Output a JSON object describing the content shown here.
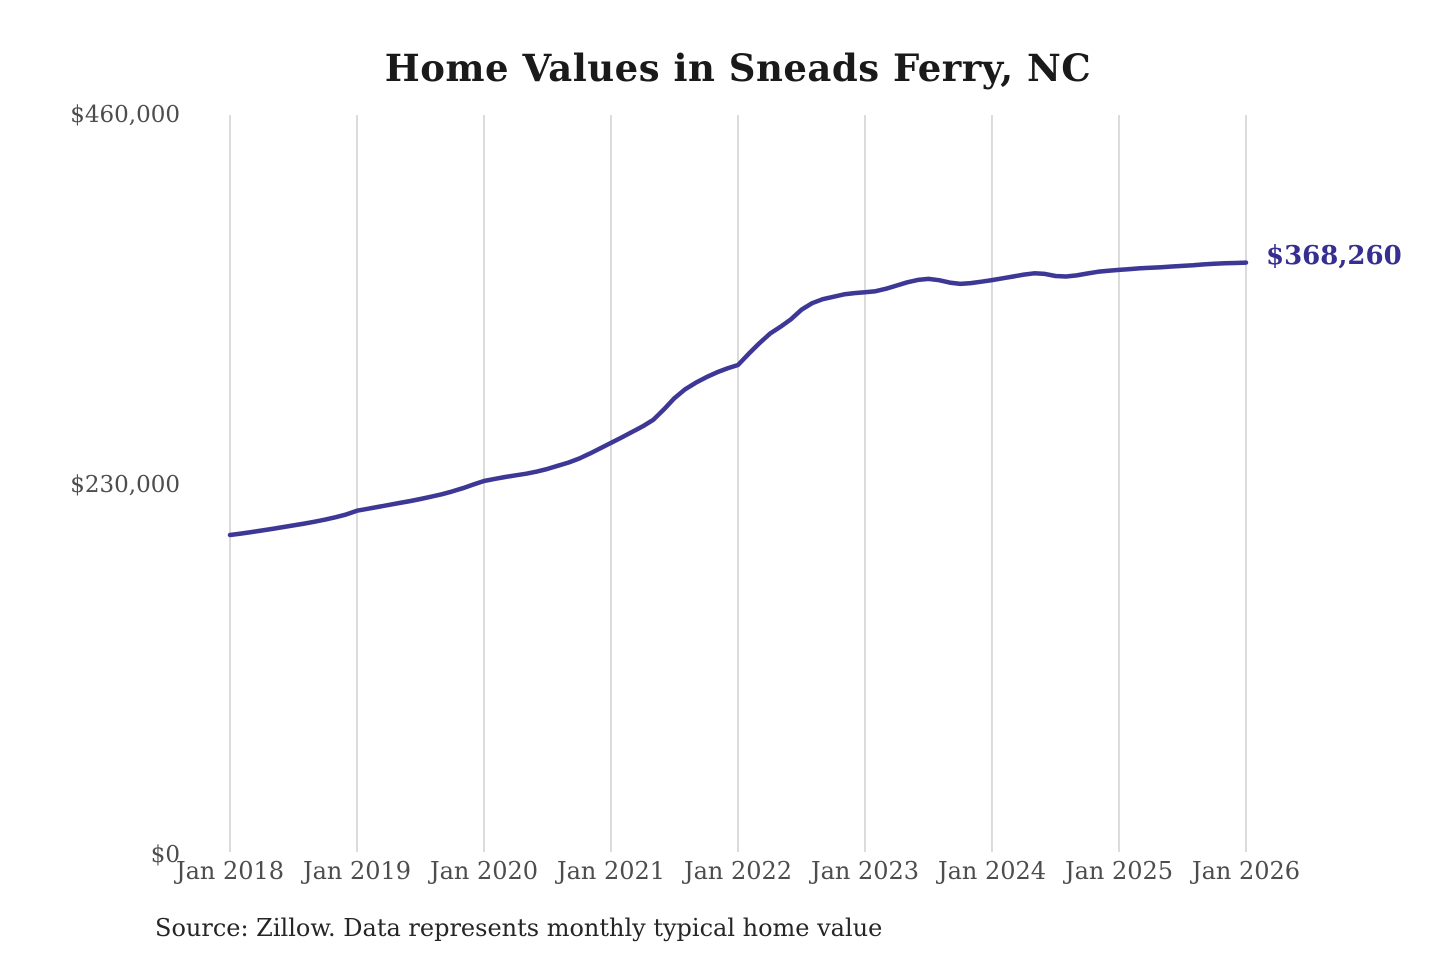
{
  "title": "Home Values in Sneads Ferry, NC",
  "source_note": "Source: Zillow. Data represents monthly typical home value",
  "latest_value_label": "$368,260",
  "colors": {
    "line": "#3d3795",
    "latest_label_text": "#362f90",
    "grid": "#c8c8c8",
    "tick_text": "#4d4d4d",
    "title_text": "#1a1a1a"
  },
  "chart_data": {
    "type": "line",
    "title": "Home Values in Sneads Ferry, NC",
    "xlabel": "",
    "ylabel": "",
    "unit": "USD",
    "grid": "vertical-only",
    "legend": "none",
    "ylim": [
      0,
      460000
    ],
    "y_ticks": [
      {
        "value": 0,
        "label": "$0"
      },
      {
        "value": 230000,
        "label": "$230,000"
      },
      {
        "value": 460000,
        "label": "$460,000"
      }
    ],
    "x_tick_labels": [
      "Jan 2018",
      "Jan 2019",
      "Jan 2020",
      "Jan 2021",
      "Jan 2022",
      "Jan 2023",
      "Jan 2024",
      "Jan 2025",
      "Jan 2026"
    ],
    "final_value": 368260,
    "series": [
      {
        "name": "Monthly typical home value",
        "start_month": "2018-01",
        "end_month": "2026-01",
        "interval": "monthly",
        "values": [
          198900,
          199800,
          200700,
          201700,
          202700,
          203800,
          204900,
          206000,
          207200,
          208500,
          210000,
          211700,
          214000,
          215200,
          216400,
          217600,
          218800,
          220000,
          221300,
          222700,
          224200,
          226000,
          228000,
          230300,
          232500,
          233800,
          235000,
          236000,
          237000,
          238300,
          240000,
          242000,
          244000,
          246500,
          249500,
          252800,
          256200,
          259500,
          263000,
          266500,
          270500,
          277000,
          284000,
          289500,
          293500,
          297000,
          300000,
          302500,
          304600,
          311500,
          318000,
          324000,
          328300,
          333000,
          339000,
          343000,
          345500,
          347000,
          348500,
          349300,
          349800,
          350500,
          352000,
          354000,
          356000,
          357500,
          358100,
          357300,
          355800,
          355000,
          355500,
          356400,
          357400,
          358500,
          359600,
          360800,
          361600,
          361200,
          359900,
          359600,
          360300,
          361500,
          362500,
          363200,
          363700,
          364200,
          364700,
          365100,
          365400,
          365800,
          366200,
          366600,
          367100,
          367500,
          367800,
          368000,
          368260
        ]
      }
    ]
  }
}
